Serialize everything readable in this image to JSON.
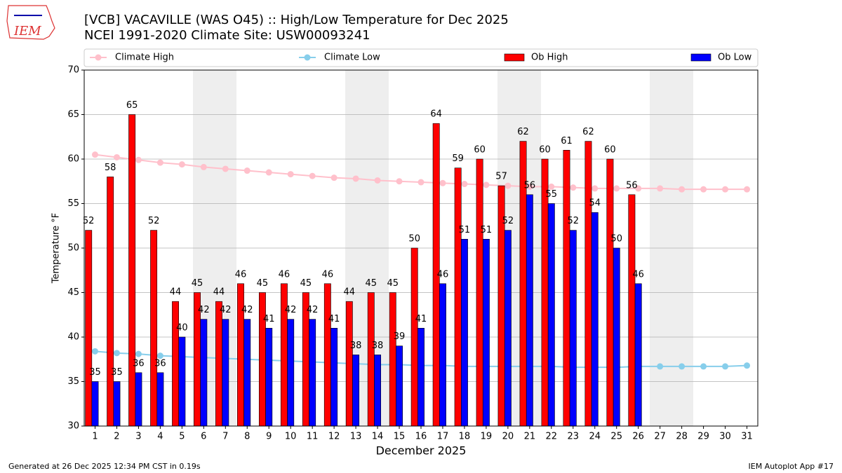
{
  "logo": "IEM",
  "footer": {
    "left": "Generated at 26 Dec 2025 12:34 PM CST in 0.19s",
    "right": "IEM Autoplot App #17"
  },
  "chart_data": {
    "type": "bar",
    "title": "[VCB] VACAVILLE (WAS O45) :: High/Low Temperature for Dec 2025",
    "subtitle": "NCEI 1991-2020 Climate Site: USW00093241",
    "xlabel": "December 2025",
    "ylabel": "Temperature °F",
    "categories": [
      "1",
      "2",
      "3",
      "4",
      "5",
      "6",
      "7",
      "8",
      "9",
      "10",
      "11",
      "12",
      "13",
      "14",
      "15",
      "16",
      "17",
      "18",
      "19",
      "20",
      "21",
      "22",
      "23",
      "24",
      "25",
      "26",
      "27",
      "28",
      "29",
      "30",
      "31"
    ],
    "ylim": [
      30,
      70
    ],
    "yticks": [
      30,
      35,
      40,
      45,
      50,
      55,
      60,
      65,
      70
    ],
    "grid": true,
    "series": [
      {
        "name": "Climate High",
        "type": "line",
        "color": "#ffc0cb",
        "values": [
          60.5,
          60.2,
          59.9,
          59.6,
          59.4,
          59.1,
          58.9,
          58.7,
          58.5,
          58.3,
          58.1,
          57.9,
          57.8,
          57.6,
          57.5,
          57.4,
          57.3,
          57.2,
          57.1,
          57.0,
          56.9,
          56.9,
          56.8,
          56.7,
          56.7,
          56.7,
          56.7,
          56.6,
          56.6,
          56.6,
          56.6
        ]
      },
      {
        "name": "Climate Low",
        "type": "line",
        "color": "#87ceeb",
        "values": [
          38.4,
          38.2,
          38.1,
          37.9,
          37.8,
          37.7,
          37.6,
          37.5,
          37.4,
          37.3,
          37.2,
          37.1,
          37.0,
          36.9,
          36.9,
          36.8,
          36.8,
          36.7,
          36.7,
          36.7,
          36.7,
          36.7,
          36.6,
          36.6,
          36.6,
          36.7,
          36.7,
          36.7,
          36.7,
          36.7,
          36.8
        ]
      },
      {
        "name": "Ob High",
        "type": "bar",
        "color": "#ff0000",
        "values": [
          52,
          58,
          65,
          52,
          44,
          45,
          44,
          46,
          45,
          46,
          45,
          46,
          44,
          45,
          45,
          50,
          64,
          59,
          60,
          57,
          62,
          60,
          61,
          62,
          60,
          56,
          null,
          null,
          null,
          null,
          null
        ]
      },
      {
        "name": "Ob Low",
        "type": "bar",
        "color": "#0000ff",
        "values": [
          35,
          35,
          36,
          36,
          40,
          42,
          42,
          42,
          41,
          42,
          42,
          41,
          38,
          38,
          39,
          41,
          46,
          51,
          51,
          52,
          56,
          55,
          52,
          54,
          50,
          46,
          null,
          null,
          null,
          null,
          null
        ]
      }
    ]
  }
}
